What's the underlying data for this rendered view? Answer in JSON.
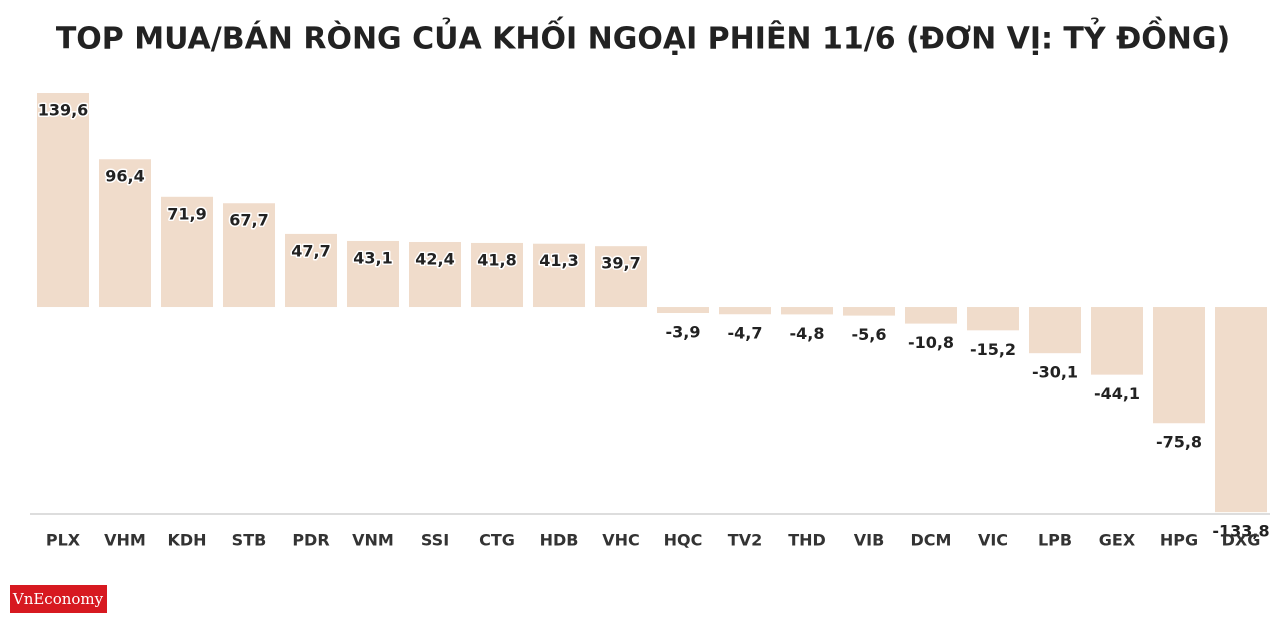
{
  "chart_data": {
    "type": "bar",
    "title": "TOP MUA/BÁN RÒNG CỦA KHỐI NGOẠI PHIÊN 11/6 (ĐƠN VỊ: TỶ ĐỒNG)",
    "categories": [
      "PLX",
      "VHM",
      "KDH",
      "STB",
      "PDR",
      "VNM",
      "SSI",
      "CTG",
      "HDB",
      "VHC",
      "HQC",
      "TV2",
      "THD",
      "VIB",
      "DCM",
      "VIC",
      "LPB",
      "GEX",
      "HPG",
      "DXG"
    ],
    "values": [
      139.6,
      96.4,
      71.9,
      67.7,
      47.7,
      43.1,
      42.4,
      41.8,
      41.3,
      39.7,
      -3.9,
      -4.7,
      -4.8,
      -5.6,
      -10.8,
      -15.2,
      -30.1,
      -44.1,
      -75.8,
      -133.8
    ],
    "value_labels": [
      "139,6",
      "96,4",
      "71,9",
      "67,7",
      "47,7",
      "43,1",
      "42,4",
      "41,8",
      "41,3",
      "39,7",
      "-3,9",
      "-4,7",
      "-4,8",
      "-5,6",
      "-10,8",
      "-15,2",
      "-30,1",
      "-44,1",
      "-75,8",
      "-133,8"
    ],
    "color": "#f0dccb",
    "ylim": [
      -135,
      140
    ],
    "grid": false
  },
  "logo": "VnEconomy"
}
